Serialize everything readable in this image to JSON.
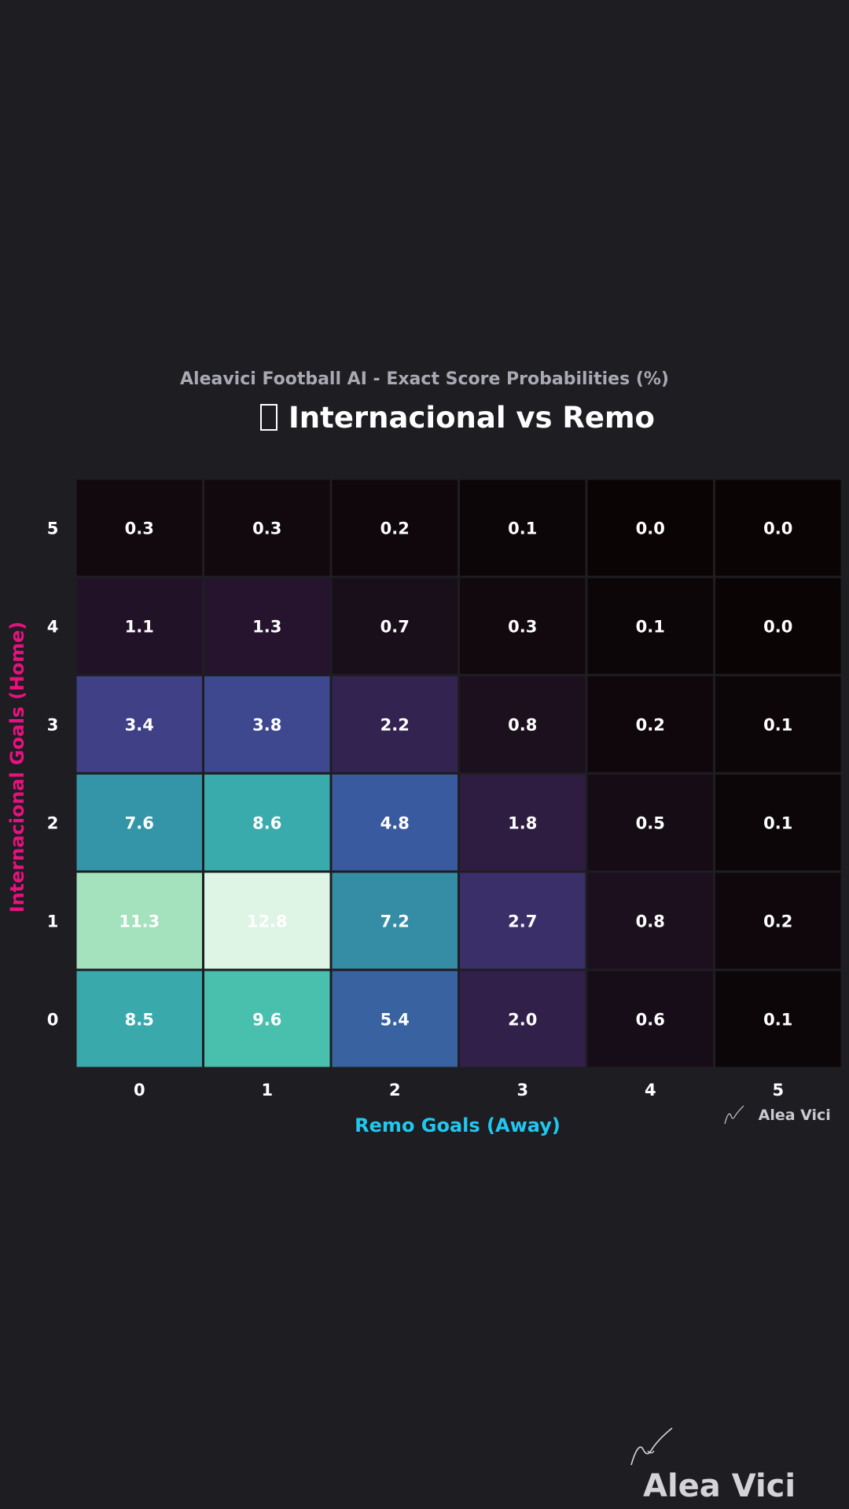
{
  "subtitle": "Aleavici Football AI - Exact Score Probabilities (%)",
  "title": "Internacional vs Remo",
  "watermark": "Alea Vici",
  "chart_data": {
    "type": "heatmap",
    "xlabel": "Remo Goals (Away)",
    "ylabel": "Internacional Goals (Home)",
    "x_categories": [
      "0",
      "1",
      "2",
      "3",
      "4",
      "5"
    ],
    "y_categories": [
      "0",
      "1",
      "2",
      "3",
      "4",
      "5"
    ],
    "values": [
      [
        8.5,
        9.6,
        5.4,
        2.0,
        0.6,
        0.1
      ],
      [
        11.3,
        12.8,
        7.2,
        2.7,
        0.8,
        0.2
      ],
      [
        7.6,
        8.6,
        4.8,
        1.8,
        0.5,
        0.1
      ],
      [
        3.4,
        3.8,
        2.2,
        0.8,
        0.2,
        0.1
      ],
      [
        1.1,
        1.3,
        0.7,
        0.3,
        0.1,
        0.0
      ],
      [
        0.3,
        0.3,
        0.2,
        0.1,
        0.0,
        0.0
      ]
    ],
    "xlabel_color": "#1ec8f0",
    "ylabel_color": "#e8117f",
    "colormap": "mako"
  }
}
